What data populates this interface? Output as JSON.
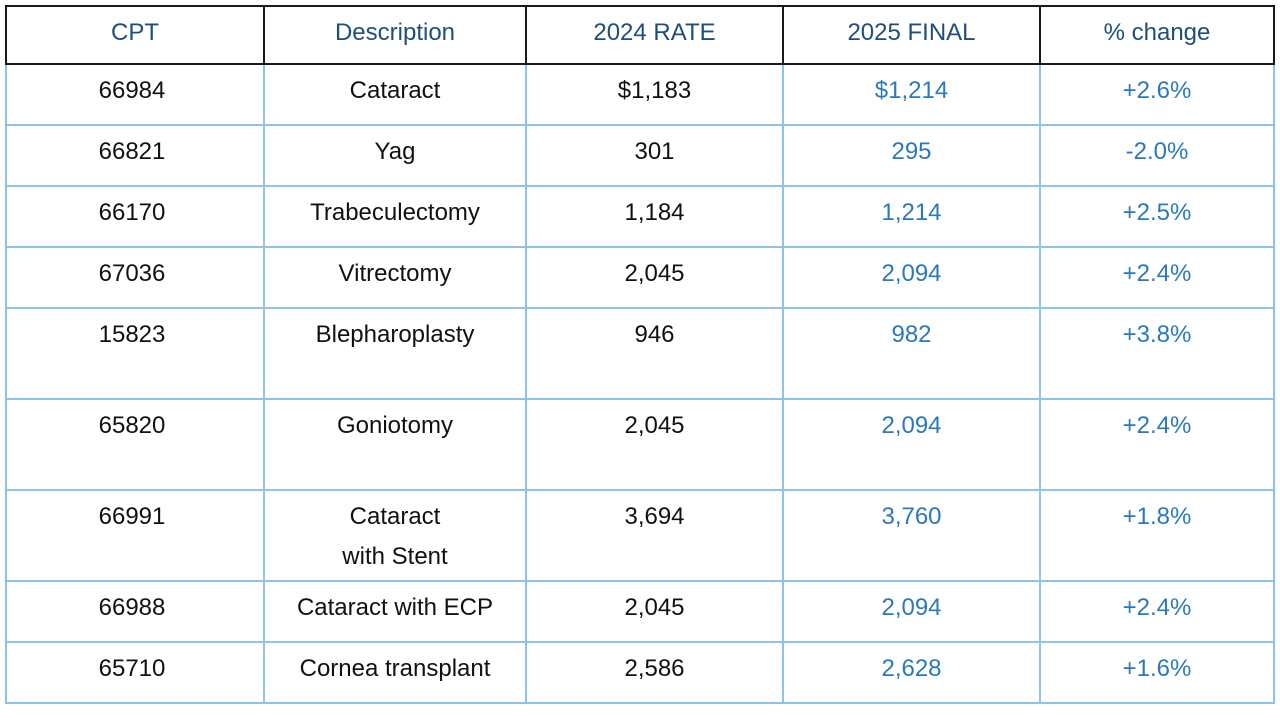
{
  "table": {
    "headers": [
      "CPT",
      "Description",
      "2024 RATE",
      "2025 FINAL",
      "% change"
    ],
    "rows": [
      {
        "cpt": "66984",
        "description": "Cataract",
        "rate_2024": "$1,183",
        "final_2025": "$1,214",
        "change": "+2.6%"
      },
      {
        "cpt": "66821",
        "description": "Yag",
        "rate_2024": "301",
        "final_2025": "295",
        "change": "-2.0%"
      },
      {
        "cpt": "66170",
        "description": "Trabeculectomy",
        "rate_2024": "1,184",
        "final_2025": "1,214",
        "change": "+2.5%"
      },
      {
        "cpt": "67036",
        "description": "Vitrectomy",
        "rate_2024": "2,045",
        "final_2025": "2,094",
        "change": "+2.4%"
      },
      {
        "cpt": "15823",
        "description": "Blepharoplasty",
        "rate_2024": "946",
        "final_2025": "982",
        "change": "+3.8%"
      },
      {
        "cpt": "65820",
        "description": "Goniotomy",
        "rate_2024": "2,045",
        "final_2025": "2,094",
        "change": "+2.4%"
      },
      {
        "cpt": "66991",
        "description": "Cataract with Stent",
        "rate_2024": "3,694",
        "final_2025": "3,760",
        "change": "+1.8%"
      },
      {
        "cpt": "66988",
        "description": "Cataract with ECP",
        "rate_2024": "2,045",
        "final_2025": "2,094",
        "change": "+2.4%"
      },
      {
        "cpt": "65710",
        "description": "Cornea transplant",
        "rate_2024": "2,586",
        "final_2025": "2,628",
        "change": "+1.6%"
      }
    ]
  },
  "colors": {
    "header_text": "#1f4e7a",
    "accent_blue": "#2a79bd",
    "grid_line": "#8fc3e6",
    "header_border": "#1a1a1a"
  }
}
